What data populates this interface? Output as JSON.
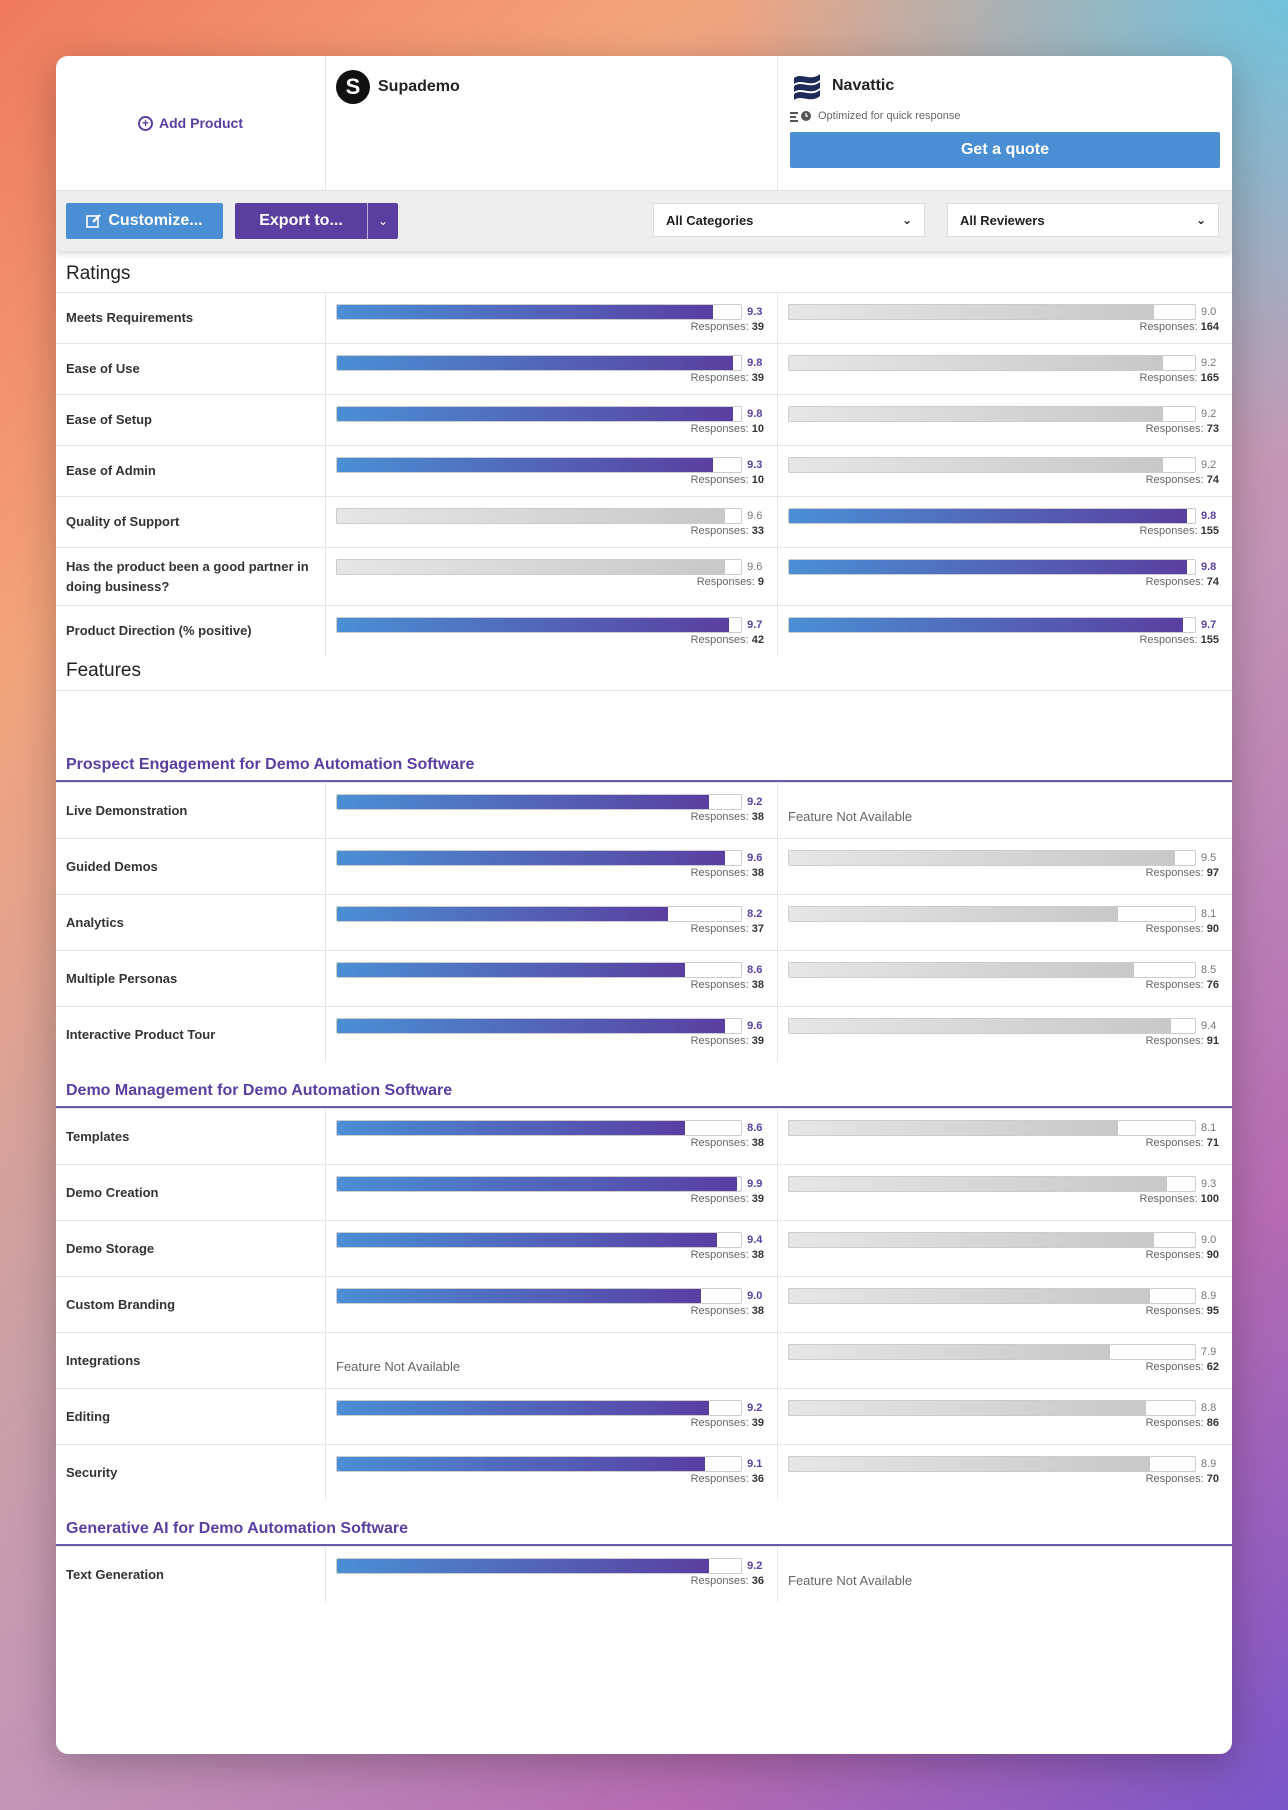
{
  "header": {
    "add_product": "Add Product",
    "products": [
      {
        "name": "Supademo",
        "logo_letter": "S"
      },
      {
        "name": "Navattic",
        "quick_response": "Optimized for quick response",
        "quote_label": "Get a quote"
      }
    ]
  },
  "toolbar": {
    "customize_label": "Customize...",
    "export_label": "Export to...",
    "categories_value": "All Categories",
    "reviewers_value": "All Reviewers"
  },
  "colors": {
    "accent_blue": "#4a8fd4",
    "accent_purple": "#5a3fa0"
  },
  "ratings": {
    "title": "Ratings",
    "rows": [
      {
        "label": "Meets Requirements",
        "a": {
          "score": "9.3",
          "responses": "39",
          "win": true
        },
        "b": {
          "score": "9.0",
          "responses": "164",
          "win": false
        }
      },
      {
        "label": "Ease of Use",
        "a": {
          "score": "9.8",
          "responses": "39",
          "win": true
        },
        "b": {
          "score": "9.2",
          "responses": "165",
          "win": false
        }
      },
      {
        "label": "Ease of Setup",
        "a": {
          "score": "9.8",
          "responses": "10",
          "win": true
        },
        "b": {
          "score": "9.2",
          "responses": "73",
          "win": false
        }
      },
      {
        "label": "Ease of Admin",
        "a": {
          "score": "9.3",
          "responses": "10",
          "win": true
        },
        "b": {
          "score": "9.2",
          "responses": "74",
          "win": false
        }
      },
      {
        "label": "Quality of Support",
        "a": {
          "score": "9.6",
          "responses": "33",
          "win": false
        },
        "b": {
          "score": "9.8",
          "responses": "155",
          "win": true
        }
      },
      {
        "label": "Has the product been a good partner in doing business?",
        "a": {
          "score": "9.6",
          "responses": "9",
          "win": false
        },
        "b": {
          "score": "9.8",
          "responses": "74",
          "win": true
        },
        "tall": true
      },
      {
        "label": "Product Direction (% positive)",
        "a": {
          "score": "9.7",
          "responses": "42",
          "win": true
        },
        "b": {
          "score": "9.7",
          "responses": "155",
          "win": true
        }
      }
    ]
  },
  "features": {
    "title": "Features",
    "responses_label": "Responses:",
    "not_available": "Feature Not Available",
    "groups": [
      {
        "title": "Prospect Engagement for Demo Automation Software",
        "rows": [
          {
            "label": "Live Demonstration",
            "a": {
              "score": "9.2",
              "responses": "38",
              "win": true
            },
            "b": null
          },
          {
            "label": "Guided Demos",
            "a": {
              "score": "9.6",
              "responses": "38",
              "win": true
            },
            "b": {
              "score": "9.5",
              "responses": "97",
              "win": false
            }
          },
          {
            "label": "Analytics",
            "a": {
              "score": "8.2",
              "responses": "37",
              "win": true
            },
            "b": {
              "score": "8.1",
              "responses": "90",
              "win": false
            }
          },
          {
            "label": "Multiple Personas",
            "a": {
              "score": "8.6",
              "responses": "38",
              "win": true
            },
            "b": {
              "score": "8.5",
              "responses": "76",
              "win": false
            }
          },
          {
            "label": "Interactive Product Tour",
            "a": {
              "score": "9.6",
              "responses": "39",
              "win": true
            },
            "b": {
              "score": "9.4",
              "responses": "91",
              "win": false
            }
          }
        ]
      },
      {
        "title": "Demo Management for Demo Automation Software",
        "rows": [
          {
            "label": "Templates",
            "a": {
              "score": "8.6",
              "responses": "38",
              "win": true
            },
            "b": {
              "score": "8.1",
              "responses": "71",
              "win": false
            }
          },
          {
            "label": "Demo Creation",
            "a": {
              "score": "9.9",
              "responses": "39",
              "win": true
            },
            "b": {
              "score": "9.3",
              "responses": "100",
              "win": false
            }
          },
          {
            "label": "Demo Storage",
            "a": {
              "score": "9.4",
              "responses": "38",
              "win": true
            },
            "b": {
              "score": "9.0",
              "responses": "90",
              "win": false
            }
          },
          {
            "label": "Custom Branding",
            "a": {
              "score": "9.0",
              "responses": "38",
              "win": true
            },
            "b": {
              "score": "8.9",
              "responses": "95",
              "win": false
            }
          },
          {
            "label": "Integrations",
            "a": null,
            "b": {
              "score": "7.9",
              "responses": "62",
              "win": false
            }
          },
          {
            "label": "Editing",
            "a": {
              "score": "9.2",
              "responses": "39",
              "win": true
            },
            "b": {
              "score": "8.8",
              "responses": "86",
              "win": false
            }
          },
          {
            "label": "Security",
            "a": {
              "score": "9.1",
              "responses": "36",
              "win": true
            },
            "b": {
              "score": "8.9",
              "responses": "70",
              "win": false
            }
          }
        ]
      },
      {
        "title": "Generative AI for Demo Automation Software",
        "rows": [
          {
            "label": "Text Generation",
            "a": {
              "score": "9.2",
              "responses": "36",
              "win": true
            },
            "b": null
          }
        ]
      }
    ]
  }
}
